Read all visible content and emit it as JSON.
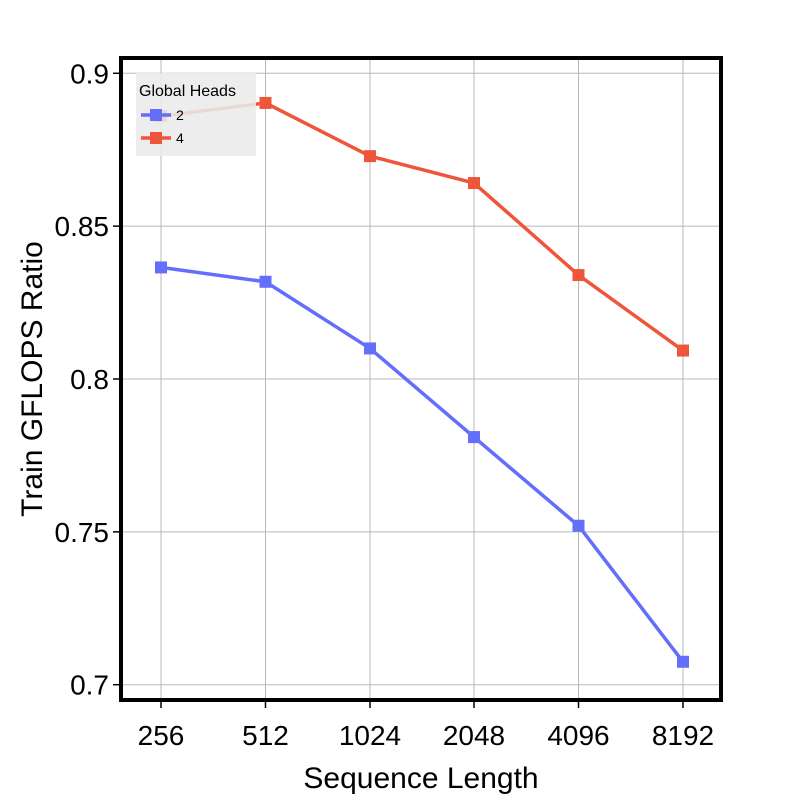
{
  "chart_data": {
    "type": "line",
    "xlabel": "Sequence Length",
    "ylabel": "Train GFLOPS Ratio",
    "categories": [
      "256",
      "512",
      "1024",
      "2048",
      "4096",
      "8192"
    ],
    "ylim": [
      0.695,
      0.905
    ],
    "yticks": [
      0.7,
      0.75,
      0.8,
      0.85,
      0.9
    ],
    "ytick_labels": [
      "0.7",
      "0.75",
      "0.8",
      "0.85",
      "0.9"
    ],
    "grid": true,
    "legend": {
      "title": "Global Heads",
      "placement": "top-left"
    },
    "series": [
      {
        "name": "2",
        "color": "#636efa",
        "marker": "square",
        "values": [
          0.8365,
          0.8318,
          0.81,
          0.781,
          0.752,
          0.7075
        ]
      },
      {
        "name": "4",
        "color": "#ef553b",
        "marker": "square",
        "values": [
          0.886,
          0.8903,
          0.8729,
          0.8641,
          0.834,
          0.8093
        ]
      }
    ]
  }
}
